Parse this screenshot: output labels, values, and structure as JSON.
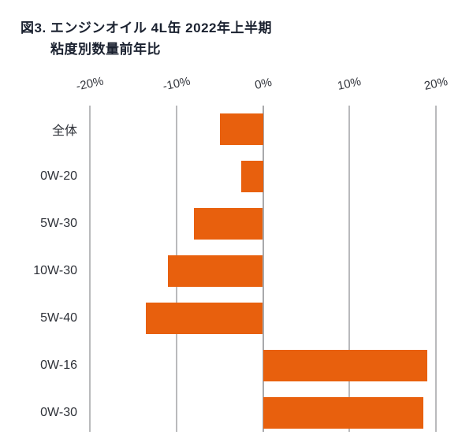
{
  "title": {
    "line1": "図3. エンジンオイル 4L缶 2022年上半期",
    "line2": "粘度別数量前年比"
  },
  "colors": {
    "bar": "#E8600D",
    "gridline": "#b9babc",
    "title_text": "#1b2230",
    "axis_text": "#33363d"
  },
  "chart_data": {
    "type": "bar",
    "orientation": "horizontal",
    "title": "図3. エンジンオイル 4L缶 2022年上半期 粘度別数量前年比",
    "categories": [
      "全体",
      "0W-20",
      "5W-30",
      "10W-30",
      "5W-40",
      "0W-16",
      "0W-30"
    ],
    "values": [
      -5,
      -2.5,
      -8,
      -11,
      -13.5,
      19,
      18.5
    ],
    "unit": "%",
    "bar_color": "#E8600D",
    "grid": true,
    "legend": false,
    "x_axis": {
      "position": "top",
      "min": -20,
      "max": 20,
      "tick_values": [
        -20,
        -10,
        0,
        10,
        20
      ],
      "ticks": [
        "-20%",
        "-10%",
        "0%",
        "10%",
        "20%"
      ]
    }
  }
}
